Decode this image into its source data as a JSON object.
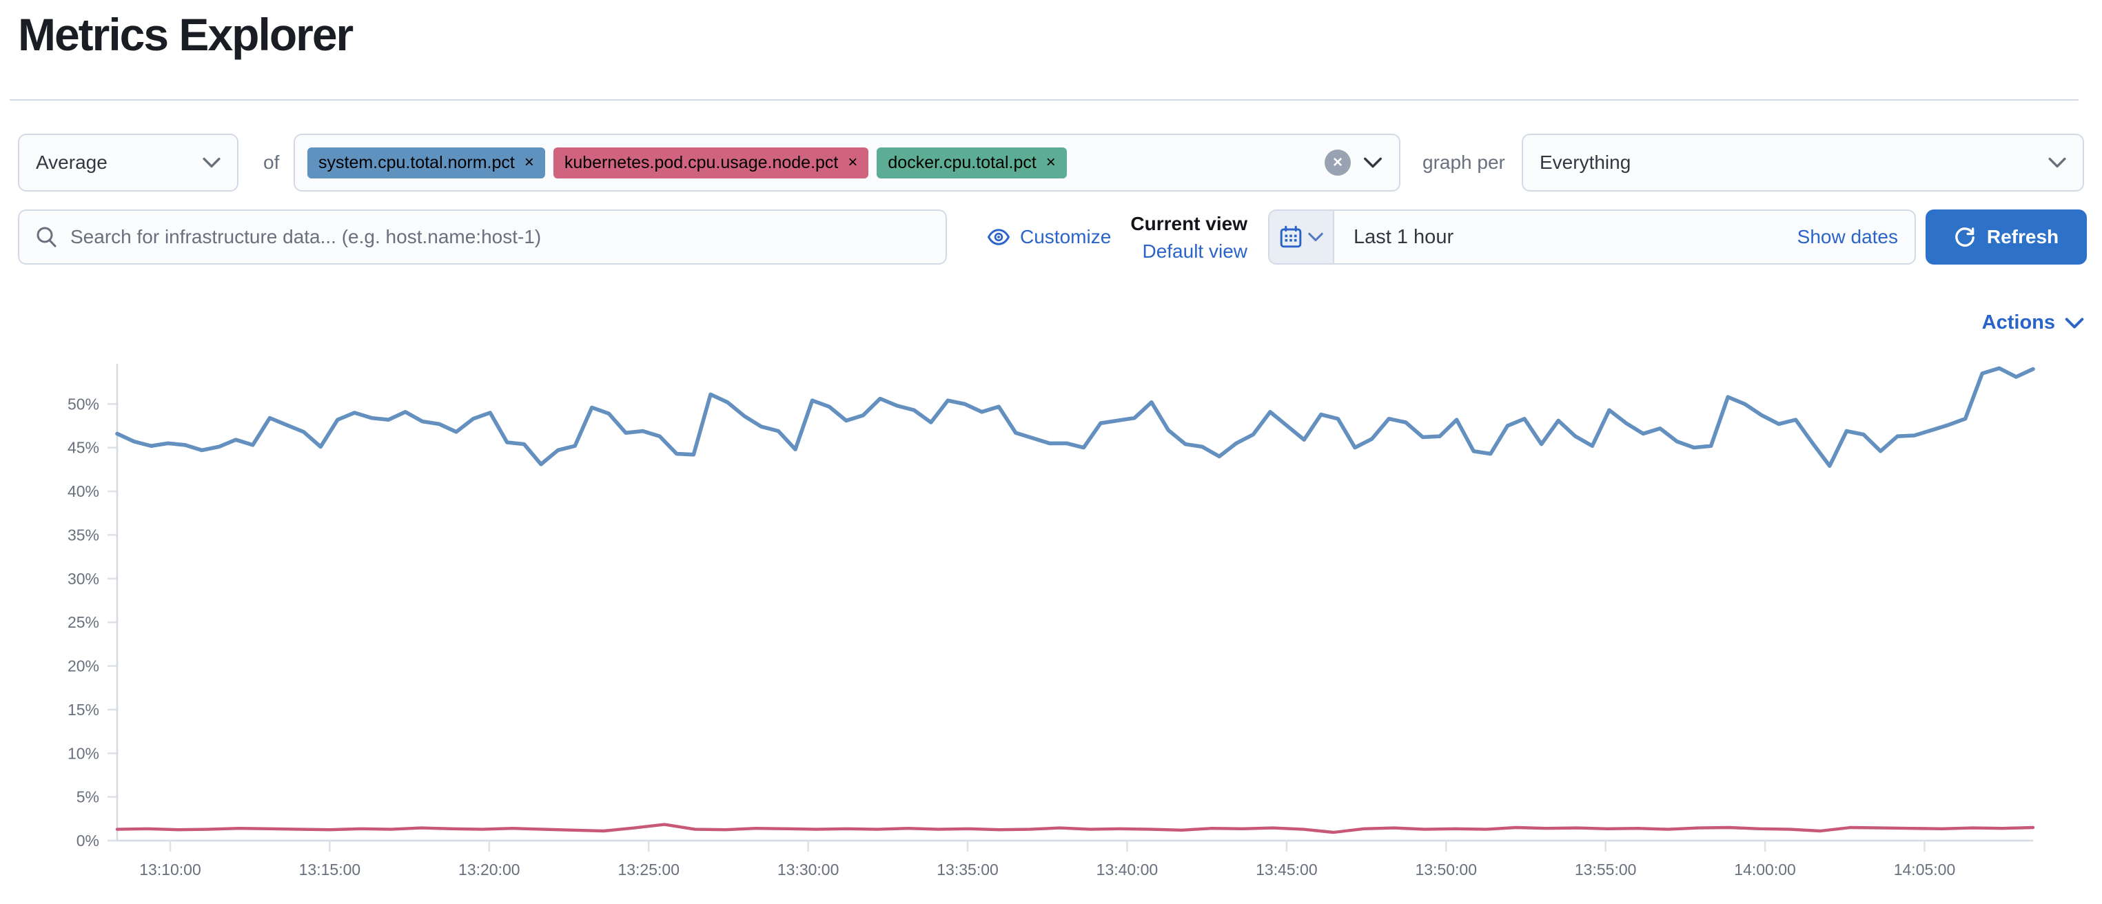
{
  "page": {
    "title": "Metrics Explorer"
  },
  "toolbar": {
    "aggregation": {
      "value": "Average"
    },
    "of_label": "of",
    "metrics": [
      {
        "label": "system.cpu.total.norm.pct",
        "color": "#6092C0"
      },
      {
        "label": "kubernetes.pod.cpu.usage.node.pct",
        "color": "#D0647F"
      },
      {
        "label": "docker.cpu.total.pct",
        "color": "#5CAD94"
      }
    ],
    "remove_icon": "×",
    "clear_all_icon": "×",
    "graph_per_label": "graph per",
    "group_by": {
      "value": "Everything"
    }
  },
  "controls": {
    "search": {
      "placeholder": "Search for infrastructure data... (e.g. host.name:host-1)"
    },
    "customize_label": "Customize",
    "current_view_label": "Current view",
    "default_view_label": "Default view",
    "time_picker": {
      "value": "Last 1 hour",
      "show_dates_label": "Show dates"
    },
    "refresh_label": "Refresh",
    "actions_label": "Actions"
  },
  "colors": {
    "link": "#2a64c9",
    "primary_button": "#2e71c9",
    "axis_line": "#d6dae2",
    "tick_mark": "#dfe3e9",
    "axis_text": "#69707d"
  },
  "chart_data": {
    "type": "line",
    "title": "",
    "xlabel": "",
    "ylabel": "",
    "ylim": [
      0,
      54.6
    ],
    "grid": "ticks-only",
    "legend_position": "none",
    "y_ticks": [
      {
        "value": 0,
        "label": "0%"
      },
      {
        "value": 5,
        "label": "5%"
      },
      {
        "value": 10,
        "label": "10%"
      },
      {
        "value": 15,
        "label": "15%"
      },
      {
        "value": 20,
        "label": "20%"
      },
      {
        "value": 25,
        "label": "25%"
      },
      {
        "value": 30,
        "label": "30%"
      },
      {
        "value": 35,
        "label": "35%"
      },
      {
        "value": 40,
        "label": "40%"
      },
      {
        "value": 45,
        "label": "45%"
      },
      {
        "value": 50,
        "label": "50%"
      }
    ],
    "x_ticks": [
      "13:10:00",
      "13:15:00",
      "13:20:00",
      "13:25:00",
      "13:30:00",
      "13:35:00",
      "13:40:00",
      "13:45:00",
      "13:50:00",
      "13:55:00",
      "14:00:00",
      "14:05:00"
    ],
    "x_first_tick_frac": 0.0277,
    "x_tick_step_frac": 0.08324,
    "series": [
      {
        "name": "system.cpu.total.norm.pct",
        "unit": "%",
        "color": "#6390BF",
        "stroke_width": 2.8,
        "values": [
          46.6,
          45.7,
          45.2,
          45.5,
          45.3,
          44.7,
          45.1,
          45.9,
          45.3,
          48.4,
          47.6,
          46.8,
          45.1,
          48.2,
          49.0,
          48.4,
          48.2,
          49.1,
          48.0,
          47.7,
          46.8,
          48.3,
          49.0,
          45.6,
          45.4,
          43.1,
          44.7,
          45.2,
          49.6,
          48.9,
          46.7,
          46.9,
          46.3,
          44.3,
          44.2,
          51.1,
          50.2,
          48.6,
          47.4,
          46.9,
          44.8,
          50.4,
          49.7,
          48.1,
          48.7,
          50.6,
          49.8,
          49.3,
          47.9,
          50.4,
          50.0,
          49.1,
          49.7,
          46.7,
          46.1,
          45.5,
          45.5,
          45.0,
          47.8,
          48.1,
          48.4,
          50.2,
          47.0,
          45.4,
          45.1,
          44.0,
          45.5,
          46.5,
          49.1,
          47.5,
          45.9,
          48.8,
          48.3,
          45.0,
          46.0,
          48.3,
          47.9,
          46.2,
          46.3,
          48.2,
          44.6,
          44.3,
          47.5,
          48.3,
          45.4,
          48.1,
          46.3,
          45.2,
          49.3,
          47.8,
          46.6,
          47.2,
          45.7,
          45.0,
          45.2,
          50.8,
          50.0,
          48.7,
          47.7,
          48.2,
          45.5,
          42.9,
          46.9,
          46.5,
          44.6,
          46.3,
          46.4,
          47.0,
          47.6,
          48.3,
          53.5,
          54.1,
          53.1,
          54.0
        ]
      },
      {
        "name": "kubernetes.pod.cpu.usage.node.pct",
        "unit": "%",
        "color": "#C75877",
        "stroke_width": 2.2,
        "values": [
          1.3,
          1.35,
          1.25,
          1.3,
          1.4,
          1.35,
          1.3,
          1.25,
          1.35,
          1.3,
          1.45,
          1.35,
          1.3,
          1.4,
          1.3,
          1.2,
          1.1,
          1.45,
          1.85,
          1.3,
          1.25,
          1.4,
          1.35,
          1.3,
          1.35,
          1.3,
          1.4,
          1.3,
          1.35,
          1.25,
          1.3,
          1.45,
          1.3,
          1.35,
          1.3,
          1.2,
          1.4,
          1.35,
          1.45,
          1.3,
          0.95,
          1.35,
          1.45,
          1.3,
          1.35,
          1.3,
          1.5,
          1.4,
          1.45,
          1.35,
          1.4,
          1.3,
          1.45,
          1.5,
          1.35,
          1.3,
          1.1,
          1.5,
          1.45,
          1.4,
          1.35,
          1.45,
          1.4,
          1.5
        ]
      }
    ]
  }
}
